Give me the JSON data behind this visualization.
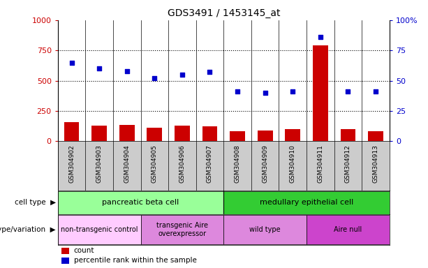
{
  "title": "GDS3491 / 1453145_at",
  "samples": [
    "GSM304902",
    "GSM304903",
    "GSM304904",
    "GSM304905",
    "GSM304906",
    "GSM304907",
    "GSM304908",
    "GSM304909",
    "GSM304910",
    "GSM304911",
    "GSM304912",
    "GSM304913"
  ],
  "counts": [
    160,
    130,
    135,
    110,
    130,
    125,
    85,
    90,
    100,
    790,
    100,
    85
  ],
  "percentile": [
    65,
    60,
    58,
    52,
    55,
    57,
    41,
    40,
    41,
    86,
    41,
    41
  ],
  "count_color": "#cc0000",
  "percentile_color": "#0000cc",
  "ylim_left": [
    0,
    1000
  ],
  "ylim_right": [
    0,
    100
  ],
  "yticks_left": [
    0,
    250,
    500,
    750,
    1000
  ],
  "ytick_labels_left": [
    "0",
    "250",
    "500",
    "750",
    "1000"
  ],
  "yticks_right": [
    0,
    25,
    50,
    75,
    100
  ],
  "ytick_labels_right": [
    "0",
    "25",
    "50",
    "75",
    "100%"
  ],
  "cell_type_groups": [
    {
      "text": "pancreatic beta cell",
      "start": 0,
      "end": 5,
      "color": "#99ff99"
    },
    {
      "text": "medullary epithelial cell",
      "start": 6,
      "end": 11,
      "color": "#33cc33"
    }
  ],
  "genotype_groups": [
    {
      "text": "non-transgenic control",
      "start": 0,
      "end": 2,
      "color": "#ffccff"
    },
    {
      "text": "transgenic Aire\noverexpressor",
      "start": 3,
      "end": 5,
      "color": "#dd88dd"
    },
    {
      "text": "wild type",
      "start": 6,
      "end": 8,
      "color": "#dd88dd"
    },
    {
      "text": "Aire null",
      "start": 9,
      "end": 11,
      "color": "#cc44cc"
    }
  ],
  "cell_type_label": "cell type",
  "genotype_label": "genotype/variation",
  "legend_items": [
    {
      "label": "count",
      "color": "#cc0000"
    },
    {
      "label": "percentile rank within the sample",
      "color": "#0000cc"
    }
  ],
  "background_color": "#ffffff",
  "tick_area_color": "#cccccc"
}
